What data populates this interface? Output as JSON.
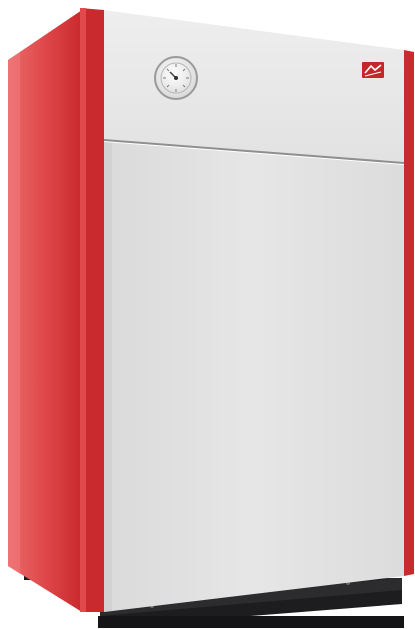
{
  "image": {
    "subject": "boiler-cabinet",
    "background_color": "#ffffff"
  },
  "colors": {
    "side_panel": "#d83a3c",
    "side_panel_highlight": "#ec6b6c",
    "front_trim": "#c92a2d",
    "front_panel": "#e3e3e3",
    "upper_panel": "#eaeaea",
    "seam": "#8f8f8f",
    "base": "#1d1d1f",
    "gauge_face": "#f5f5f5",
    "gauge_ring": "#9a9a9a",
    "logo_badge": "#c6262a"
  },
  "parts": [
    {
      "name": "side-panel",
      "color_key": "side_panel"
    },
    {
      "name": "front-panel",
      "color_key": "front_panel"
    },
    {
      "name": "upper-control-panel",
      "color_key": "upper_panel"
    },
    {
      "name": "thermometer-gauge-icon",
      "color_key": "gauge_face"
    },
    {
      "name": "brand-logo-badge",
      "color_key": "logo_badge"
    },
    {
      "name": "base-plinth",
      "color_key": "base"
    }
  ]
}
